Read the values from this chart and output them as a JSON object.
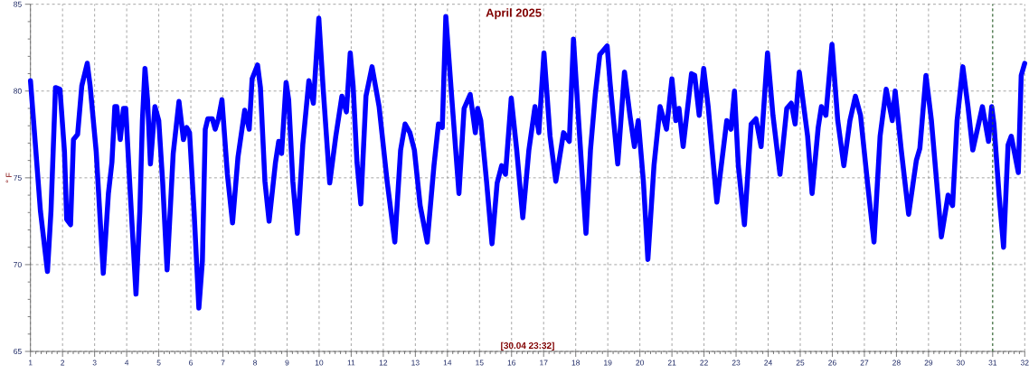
{
  "chart_data": {
    "type": "line",
    "title": "April 2025",
    "ylabel": "° F",
    "annotations": [
      "[30.04 23:32]"
    ],
    "x": [
      1.0,
      1.17,
      1.31,
      1.53,
      1.64,
      1.78,
      1.92,
      2.06,
      2.13,
      2.25,
      2.34,
      2.47,
      2.6,
      2.77,
      2.86,
      3.05,
      3.27,
      3.43,
      3.54,
      3.63,
      3.69,
      3.8,
      3.9,
      3.97,
      4.1,
      4.29,
      4.41,
      4.49,
      4.57,
      4.65,
      4.74,
      4.88,
      5.0,
      5.12,
      5.26,
      5.45,
      5.63,
      5.77,
      5.87,
      5.96,
      6.1,
      6.25,
      6.36,
      6.45,
      6.53,
      6.67,
      6.76,
      6.86,
      6.97,
      7.14,
      7.3,
      7.47,
      7.68,
      7.82,
      7.91,
      8.08,
      8.17,
      8.31,
      8.44,
      8.64,
      8.74,
      8.83,
      8.97,
      9.05,
      9.18,
      9.32,
      9.49,
      9.68,
      9.82,
      9.99,
      10.12,
      10.33,
      10.52,
      10.71,
      10.85,
      10.97,
      11.06,
      11.18,
      11.3,
      11.46,
      11.65,
      11.87,
      12.12,
      12.36,
      12.54,
      12.68,
      12.83,
      12.97,
      13.15,
      13.37,
      13.58,
      13.72,
      13.84,
      13.95,
      14.14,
      14.36,
      14.52,
      14.71,
      14.87,
      14.94,
      15.04,
      15.22,
      15.39,
      15.55,
      15.69,
      15.81,
      15.99,
      16.16,
      16.35,
      16.54,
      16.73,
      16.85,
      17.01,
      17.2,
      17.38,
      17.62,
      17.8,
      17.93,
      18.09,
      18.32,
      18.46,
      18.61,
      18.75,
      18.98,
      19.07,
      19.31,
      19.52,
      19.69,
      19.83,
      19.95,
      20.11,
      20.25,
      20.44,
      20.63,
      20.83,
      21.0,
      21.12,
      21.22,
      21.35,
      21.61,
      21.71,
      21.85,
      21.99,
      22.13,
      22.4,
      22.71,
      22.84,
      22.95,
      23.07,
      23.26,
      23.47,
      23.62,
      23.78,
      23.98,
      24.15,
      24.37,
      24.58,
      24.72,
      24.84,
      24.97,
      25.23,
      25.37,
      25.56,
      25.66,
      25.8,
      25.99,
      26.17,
      26.36,
      26.55,
      26.72,
      26.88,
      27.11,
      27.3,
      27.49,
      27.68,
      27.87,
      27.96,
      28.15,
      28.38,
      28.62,
      28.73,
      28.92,
      29.09,
      29.4,
      29.61,
      29.75,
      29.89,
      30.07,
      30.23,
      30.38,
      30.68,
      30.87,
      30.97,
      31.04,
      31.2,
      31.34,
      31.48,
      31.58,
      31.8,
      31.89,
      32.0
    ],
    "series": [
      {
        "color": "#0000ff",
        "values": [
          80.6,
          76.5,
          73.1,
          69.6,
          73.1,
          80.2,
          80.1,
          76.5,
          72.6,
          72.3,
          77.2,
          77.5,
          80.3,
          81.6,
          80.3,
          76.5,
          69.5,
          74.1,
          75.9,
          79.1,
          79.1,
          77.2,
          79.0,
          79.0,
          74.5,
          68.3,
          73.1,
          78.3,
          81.3,
          79.5,
          75.8,
          79.1,
          78.3,
          74.8,
          69.7,
          76.4,
          79.4,
          77.2,
          77.9,
          77.6,
          73.1,
          67.5,
          70.2,
          77.8,
          78.4,
          78.4,
          77.8,
          78.4,
          79.5,
          75.2,
          72.4,
          76.2,
          78.9,
          77.8,
          80.7,
          81.5,
          80.2,
          74.8,
          72.5,
          75.9,
          77.1,
          76.4,
          80.5,
          79.5,
          74.8,
          71.8,
          76.9,
          80.6,
          79.3,
          84.2,
          80.3,
          74.7,
          77.4,
          79.7,
          78.8,
          82.2,
          80.3,
          75.9,
          73.5,
          79.7,
          81.4,
          79.1,
          74.8,
          71.3,
          76.6,
          78.1,
          77.6,
          76.6,
          73.4,
          71.3,
          75.7,
          78.1,
          77.9,
          84.3,
          79.5,
          74.1,
          79.0,
          79.8,
          77.6,
          79.0,
          78.3,
          74.8,
          71.2,
          74.7,
          75.7,
          75.2,
          79.6,
          76.6,
          72.7,
          76.6,
          79.1,
          77.6,
          82.2,
          77.4,
          74.8,
          77.6,
          77.1,
          83.0,
          78.3,
          71.8,
          76.6,
          79.8,
          82.1,
          82.6,
          80.5,
          75.8,
          81.1,
          78.6,
          76.8,
          78.3,
          74.8,
          70.3,
          75.7,
          79.1,
          77.8,
          80.7,
          78.3,
          79.0,
          76.8,
          81.0,
          80.9,
          78.6,
          81.3,
          79.1,
          73.6,
          78.3,
          77.8,
          80.0,
          75.7,
          72.3,
          78.1,
          78.4,
          76.8,
          82.2,
          78.6,
          75.2,
          79.0,
          79.3,
          78.1,
          81.1,
          77.4,
          74.1,
          77.9,
          79.1,
          78.6,
          82.7,
          78.3,
          75.7,
          78.3,
          79.7,
          78.6,
          74.5,
          71.3,
          77.4,
          80.1,
          78.3,
          80.0,
          76.6,
          72.9,
          76.0,
          76.7,
          80.9,
          78.3,
          71.6,
          74.0,
          73.4,
          78.3,
          81.4,
          79.1,
          76.6,
          79.1,
          77.1,
          79.1,
          78.1,
          74.0,
          71.0,
          76.9,
          77.4,
          75.3,
          80.9,
          81.6
        ]
      }
    ],
    "xlim": [
      1,
      32
    ],
    "ylim": [
      65,
      85
    ],
    "xticks": [
      1,
      2,
      3,
      4,
      5,
      6,
      7,
      8,
      9,
      10,
      11,
      12,
      13,
      14,
      15,
      16,
      17,
      18,
      19,
      20,
      21,
      22,
      23,
      24,
      25,
      26,
      27,
      28,
      29,
      30,
      31,
      32
    ],
    "yticks": [
      65,
      70,
      75,
      80,
      85
    ],
    "grid": true,
    "marker": "none",
    "line_style": "solid",
    "ref_lines": [
      {
        "axis": "x",
        "value": 31,
        "color": "#2e6b2e",
        "line_style": "dashed"
      }
    ]
  }
}
